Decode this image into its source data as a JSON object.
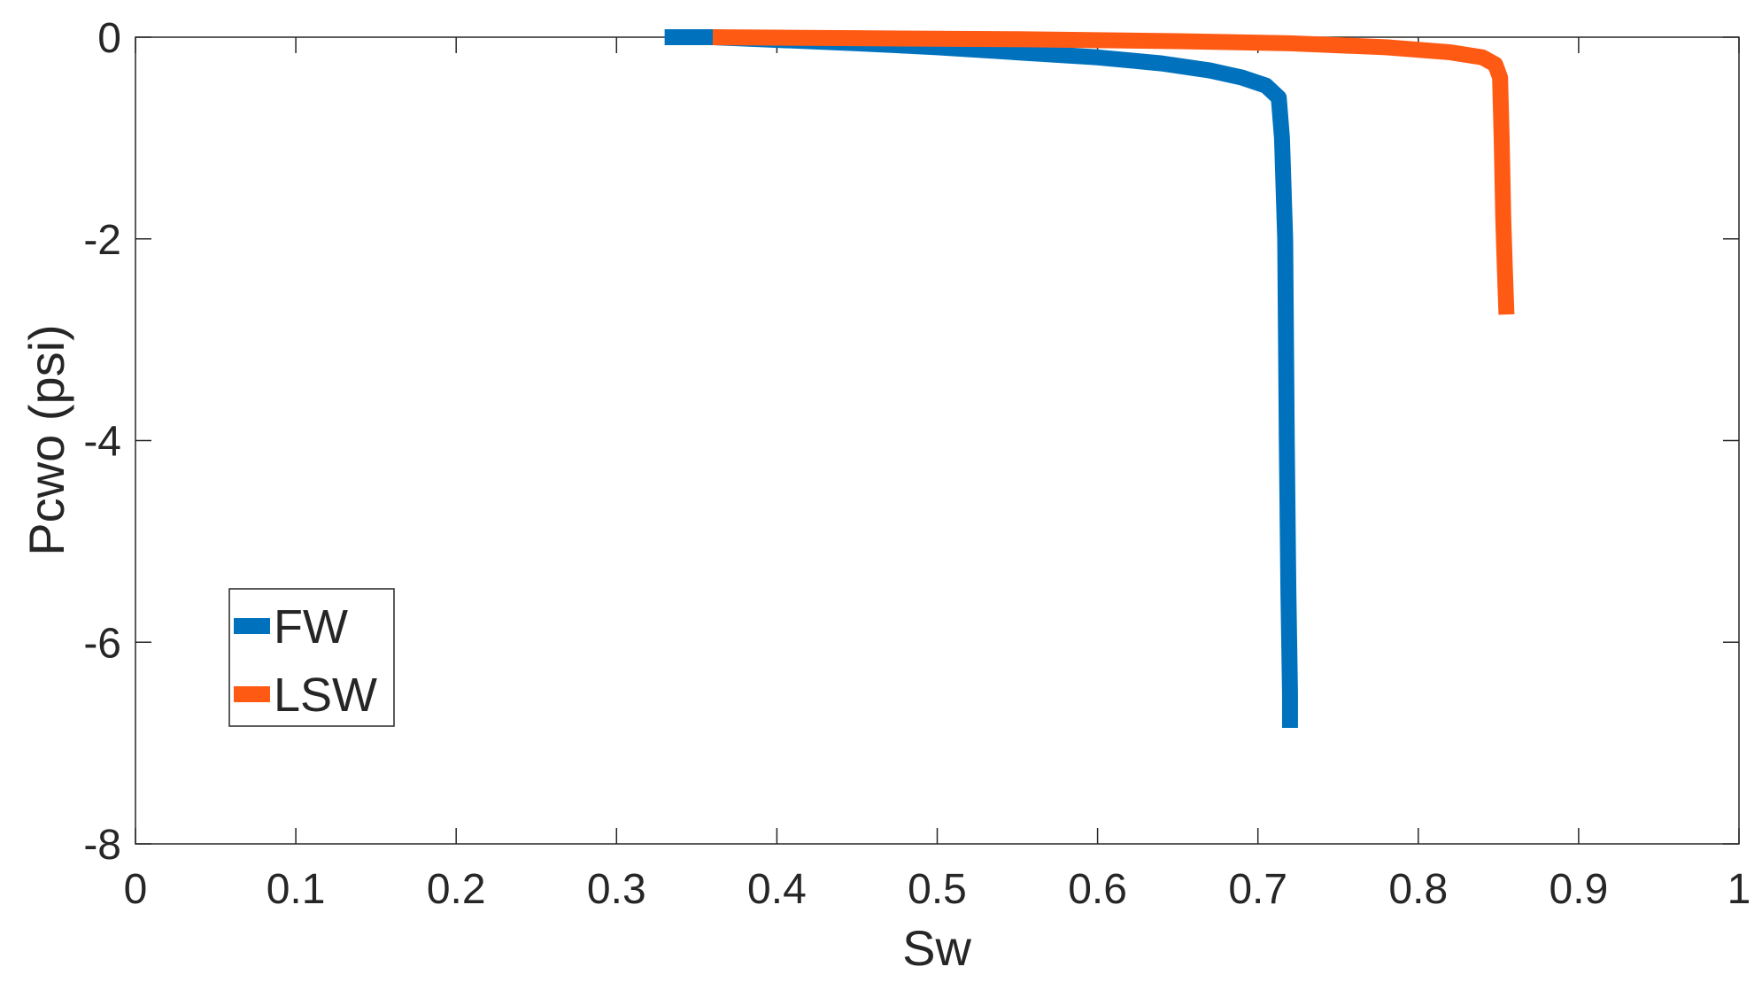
{
  "chart_data": {
    "type": "line",
    "xlabel": "Sw",
    "ylabel": "Pcwo (psi)",
    "xlim": [
      0,
      1
    ],
    "ylim": [
      -8,
      0
    ],
    "xticks": [
      0,
      0.1,
      0.2,
      0.3,
      0.4,
      0.5,
      0.6,
      0.7,
      0.8,
      0.9,
      1
    ],
    "yticks": [
      -8,
      -6,
      -4,
      -2,
      0
    ],
    "legend": "lower left",
    "series": [
      {
        "name": "FW",
        "color": "#0072bd",
        "x": [
          0.33,
          0.36,
          0.45,
          0.5,
          0.55,
          0.6,
          0.64,
          0.67,
          0.69,
          0.705,
          0.713,
          0.715,
          0.716,
          0.717,
          0.718,
          0.719,
          0.72,
          0.72
        ],
        "values": [
          0,
          0,
          -0.06,
          -0.1,
          -0.15,
          -0.2,
          -0.26,
          -0.33,
          -0.4,
          -0.48,
          -0.6,
          -1,
          -1.5,
          -2,
          -4,
          -5.5,
          -6.5,
          -6.85
        ]
      },
      {
        "name": "LSW",
        "color": "#ff5a14",
        "x": [
          0.36,
          0.45,
          0.55,
          0.65,
          0.72,
          0.78,
          0.82,
          0.84,
          0.848,
          0.851,
          0.852,
          0.853,
          0.854,
          0.855
        ],
        "values": [
          0,
          -0.01,
          -0.02,
          -0.04,
          -0.06,
          -0.1,
          -0.15,
          -0.2,
          -0.27,
          -0.4,
          -1,
          -1.8,
          -2.3,
          -2.75
        ]
      }
    ]
  }
}
